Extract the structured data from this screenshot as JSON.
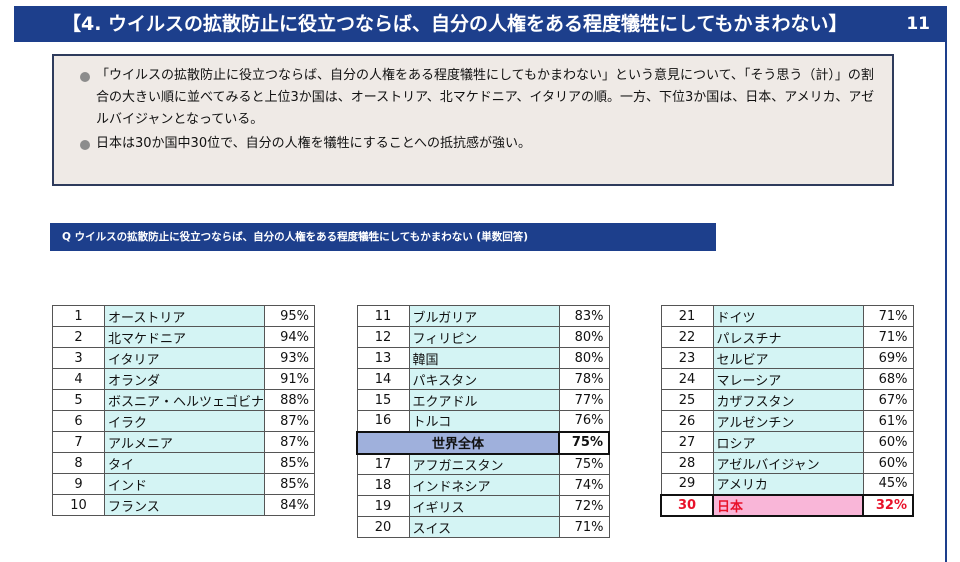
{
  "header": {
    "title": "【4. ウイルスの拡散防止に役立つならば、自分の人権をある程度犠牲にしてもかまわない】",
    "page_number": "11"
  },
  "summary": {
    "bullets": [
      "「ウイルスの拡散防止に役立つならば、自分の人権をある程度犠牲にしてもかまわない」という意見について、「そう思う（計）」の割合の大きい順に並べてみると上位3か国は、オーストリア、北マケドニア、イタリアの順。一方、下位3か国は、日本、アメリカ、アゼルバイジャンとなっている。",
      "日本は30か国中30位で、自分の人権を犠牲にすることへの抵抗感が強い。"
    ]
  },
  "question": "Q  ウイルスの拡散防止に役立つならば、自分の人権をある程度犠牲にしてもかまわない (単数回答)",
  "tables": [
    {
      "rows": [
        {
          "rank": "1",
          "country": "オーストリア",
          "pct": "95%"
        },
        {
          "rank": "2",
          "country": "北マケドニア",
          "pct": "94%"
        },
        {
          "rank": "3",
          "country": "イタリア",
          "pct": "93%"
        },
        {
          "rank": "4",
          "country": "オランダ",
          "pct": "91%"
        },
        {
          "rank": "5",
          "country": "ボスニア・ヘルツェゴビナ",
          "pct": "88%"
        },
        {
          "rank": "6",
          "country": "イラク",
          "pct": "87%"
        },
        {
          "rank": "7",
          "country": "アルメニア",
          "pct": "87%"
        },
        {
          "rank": "8",
          "country": "タイ",
          "pct": "85%"
        },
        {
          "rank": "9",
          "country": "インド",
          "pct": "85%"
        },
        {
          "rank": "10",
          "country": "フランス",
          "pct": "84%"
        }
      ]
    },
    {
      "rows": [
        {
          "rank": "11",
          "country": "ブルガリア",
          "pct": "83%"
        },
        {
          "rank": "12",
          "country": "フィリピン",
          "pct": "80%"
        },
        {
          "rank": "13",
          "country": "韓国",
          "pct": "80%"
        },
        {
          "rank": "14",
          "country": "パキスタン",
          "pct": "78%"
        },
        {
          "rank": "15",
          "country": "エクアドル",
          "pct": "77%"
        },
        {
          "rank": "16",
          "country": "トルコ",
          "pct": "76%"
        },
        {
          "rank": "",
          "country": "世界全体",
          "pct": "75%",
          "kind": "world"
        },
        {
          "rank": "17",
          "country": "アフガニスタン",
          "pct": "75%"
        },
        {
          "rank": "18",
          "country": "インドネシア",
          "pct": "74%"
        },
        {
          "rank": "19",
          "country": "イギリス",
          "pct": "72%"
        },
        {
          "rank": "20",
          "country": "スイス",
          "pct": "71%"
        }
      ]
    },
    {
      "rows": [
        {
          "rank": "21",
          "country": "ドイツ",
          "pct": "71%"
        },
        {
          "rank": "22",
          "country": "パレスチナ",
          "pct": "71%"
        },
        {
          "rank": "23",
          "country": "セルビア",
          "pct": "69%"
        },
        {
          "rank": "24",
          "country": "マレーシア",
          "pct": "68%"
        },
        {
          "rank": "25",
          "country": "カザフスタン",
          "pct": "67%"
        },
        {
          "rank": "26",
          "country": "アルゼンチン",
          "pct": "61%"
        },
        {
          "rank": "27",
          "country": "ロシア",
          "pct": "60%"
        },
        {
          "rank": "28",
          "country": "アゼルバイジャン",
          "pct": "60%"
        },
        {
          "rank": "29",
          "country": "アメリカ",
          "pct": "45%"
        },
        {
          "rank": "30",
          "country": "日本",
          "pct": "32%",
          "kind": "japan"
        }
      ]
    }
  ]
}
